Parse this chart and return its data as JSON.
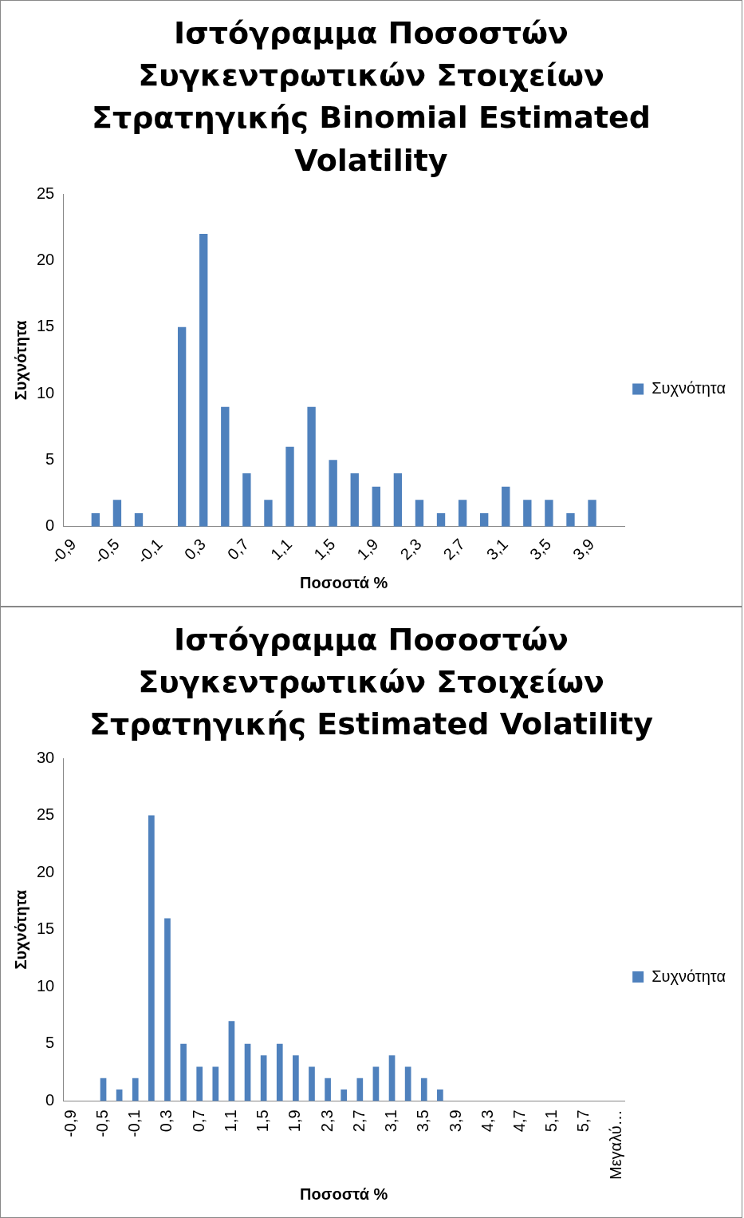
{
  "chart_data": [
    {
      "type": "bar",
      "title": "Ιστόγραμμα Ποσοστών Συγκεντρωτικών Στοιχείων Στρατηγικής Binomial Estimated Volatility",
      "xlabel": "Ποσοστά %",
      "ylabel": "Συχνότητα",
      "categories": [
        "-0,9",
        null,
        "-0,5",
        null,
        "-0,1",
        null,
        "0,3",
        null,
        "0,7",
        null,
        "1,1",
        null,
        "1,5",
        null,
        "1,9",
        null,
        "2,3",
        null,
        "2,7",
        null,
        "3,1",
        null,
        "3,5",
        null,
        "3,9",
        null
      ],
      "series": [
        {
          "name": "Συχνότητα",
          "color": "#4f81bd",
          "values": [
            0,
            1,
            2,
            1,
            0,
            15,
            22,
            9,
            4,
            2,
            6,
            9,
            5,
            4,
            3,
            4,
            2,
            1,
            2,
            1,
            3,
            2,
            2,
            1,
            2,
            0
          ]
        }
      ],
      "ylim": [
        0,
        25
      ],
      "yticks": [
        0,
        5,
        10,
        15,
        20,
        25
      ],
      "grid": false,
      "legend": "right"
    },
    {
      "type": "bar",
      "title": "Ιστόγραμμα Ποσοστών Συγκεντρωτικών Στοιχείων Στρατηγικής Estimated Volatility",
      "xlabel": "Ποσοστά %",
      "ylabel": "Συχνότητα",
      "categories": [
        "-0,9",
        null,
        "-0,5",
        null,
        "-0,1",
        null,
        "0,3",
        null,
        "0,7",
        null,
        "1,1",
        null,
        "1,5",
        null,
        "1,9",
        null,
        "2,3",
        null,
        "2,7",
        null,
        "3,1",
        null,
        "3,5",
        null,
        "3,9",
        null,
        "4,3",
        null,
        "4,7",
        null,
        "5,1",
        null,
        "5,7",
        null,
        "Μεγαλύ…"
      ],
      "series": [
        {
          "name": "Συχνότητα",
          "color": "#4f81bd",
          "values": [
            0,
            0,
            2,
            1,
            2,
            25,
            16,
            5,
            3,
            3,
            7,
            5,
            4,
            5,
            4,
            3,
            2,
            1,
            2,
            3,
            4,
            3,
            2,
            1,
            0,
            0,
            0,
            0,
            0,
            0,
            0,
            0,
            0,
            0,
            0
          ]
        }
      ],
      "ylim": [
        0,
        30
      ],
      "yticks": [
        0,
        5,
        10,
        15,
        20,
        25,
        30
      ],
      "grid": false,
      "legend": "right"
    }
  ]
}
